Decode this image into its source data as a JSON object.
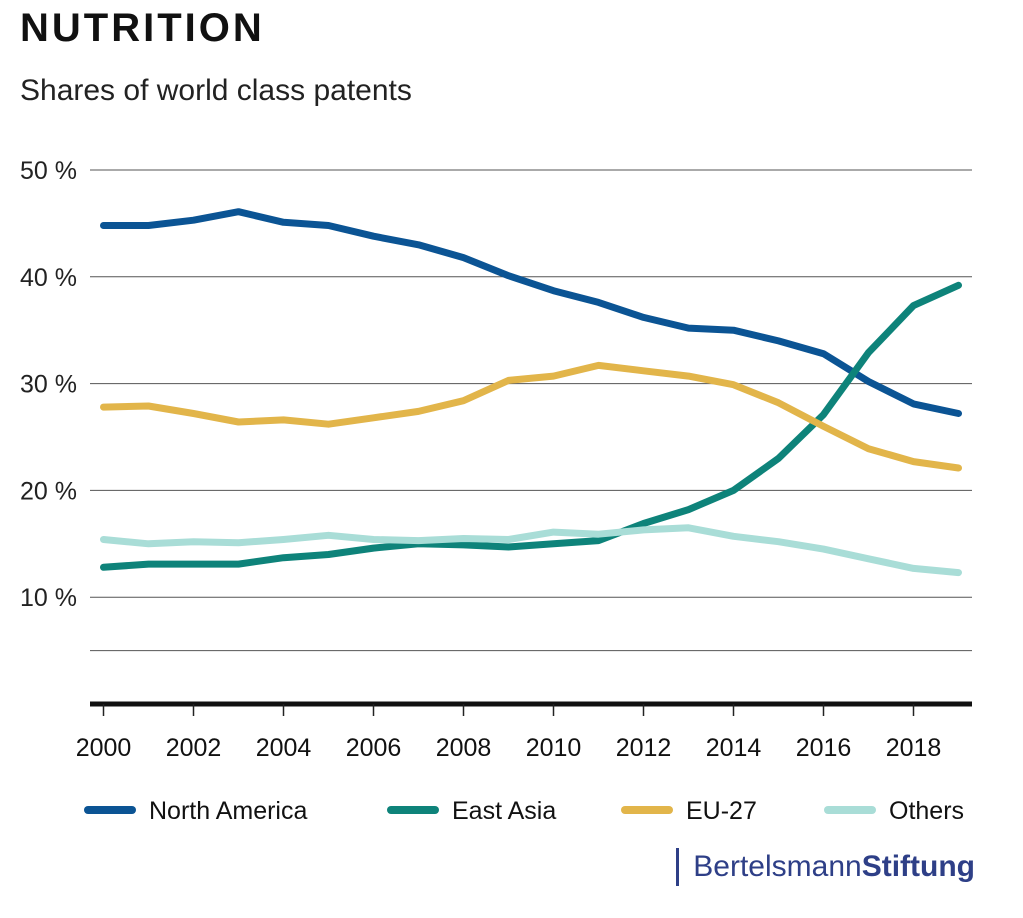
{
  "title": "NUTRITION",
  "subtitle": "Shares of world class patents",
  "brand": {
    "part1": "Bertelsmann",
    "part2": "Stiftung"
  },
  "chart_data": {
    "type": "line",
    "title": "NUTRITION",
    "subtitle": "Shares of world class patents",
    "x": [
      2000,
      2001,
      2002,
      2003,
      2004,
      2005,
      2006,
      2007,
      2008,
      2009,
      2010,
      2011,
      2012,
      2013,
      2014,
      2015,
      2016,
      2017,
      2018,
      2019
    ],
    "xlim": [
      1999.7,
      2019.3
    ],
    "ylim": [
      0,
      50
    ],
    "x_ticks": [
      2000,
      2002,
      2004,
      2006,
      2008,
      2010,
      2012,
      2014,
      2016,
      2018
    ],
    "x_tick_labels": [
      "2000",
      "2002",
      "2004",
      "2006",
      "2008",
      "2010",
      "2012",
      "2014",
      "2016",
      "2018"
    ],
    "y_ticks": [
      10,
      20,
      30,
      40,
      50
    ],
    "y_tick_labels": [
      "10 %",
      "20 %",
      "30 %",
      "40 %",
      "50 %"
    ],
    "grid": true,
    "legend_position": "bottom",
    "series": [
      {
        "name": "North America",
        "color": "#0b5494",
        "values": [
          44.8,
          44.8,
          45.3,
          46.1,
          45.1,
          44.8,
          43.8,
          43.0,
          41.8,
          40.1,
          38.7,
          37.6,
          36.2,
          35.2,
          35.0,
          34.0,
          32.8,
          30.2,
          28.1,
          27.2
        ]
      },
      {
        "name": "East Asia",
        "color": "#0e837a",
        "values": [
          12.8,
          13.1,
          13.1,
          13.1,
          13.7,
          14.0,
          14.6,
          15.0,
          14.9,
          14.7,
          15.0,
          15.3,
          16.9,
          18.2,
          20.0,
          23.0,
          27.1,
          32.9,
          37.3,
          39.2
        ]
      },
      {
        "name": "EU-27",
        "color": "#e2b54a",
        "values": [
          27.8,
          27.9,
          27.2,
          26.4,
          26.6,
          26.2,
          26.8,
          27.4,
          28.4,
          30.3,
          30.7,
          31.7,
          31.2,
          30.7,
          29.9,
          28.2,
          26.0,
          23.9,
          22.7,
          22.1
        ]
      },
      {
        "name": "Others",
        "color": "#a9ddd7",
        "values": [
          15.4,
          15.0,
          15.2,
          15.1,
          15.4,
          15.8,
          15.4,
          15.3,
          15.5,
          15.4,
          16.1,
          15.9,
          16.3,
          16.5,
          15.7,
          15.2,
          14.5,
          13.6,
          12.7,
          12.3
        ]
      }
    ]
  }
}
